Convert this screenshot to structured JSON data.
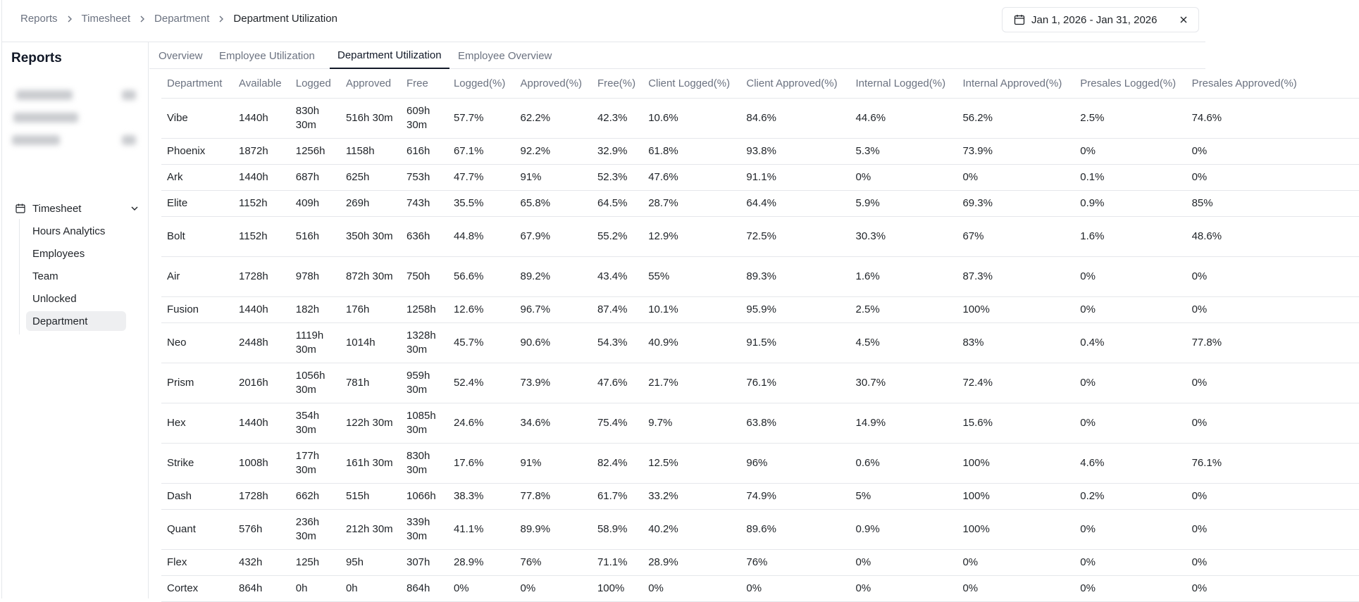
{
  "breadcrumb": {
    "items": [
      "Reports",
      "Timesheet",
      "Department"
    ],
    "current": "Department Utilization"
  },
  "date_range": {
    "label": "Jan 1, 2026 - Jan 31, 2026"
  },
  "sidebar": {
    "title": "Reports",
    "group_label": "Timesheet",
    "items": [
      "Hours Analytics",
      "Employees",
      "Team",
      "Unlocked",
      "Department"
    ]
  },
  "tabs": [
    "Overview",
    "Employee Utilization",
    "Department Utilization",
    "Employee Overview"
  ],
  "table": {
    "columns": [
      "Department",
      "Available",
      "Logged",
      "Approved",
      "Free",
      "Logged(%)",
      "Approved(%)",
      "Free(%)",
      "Client Logged(%)",
      "Client Approved(%)",
      "Internal Logged(%)",
      "Internal Approved(%)",
      "Presales Logged(%)",
      "Presales Approved(%)"
    ],
    "rows": [
      [
        "Vibe",
        "1440h",
        "830h 30m",
        "516h 30m",
        "609h 30m",
        "57.7%",
        "62.2%",
        "42.3%",
        "10.6%",
        "84.6%",
        "44.6%",
        "56.2%",
        "2.5%",
        "74.6%"
      ],
      [
        "Phoenix",
        "1872h",
        "1256h",
        "1158h",
        "616h",
        "67.1%",
        "92.2%",
        "32.9%",
        "61.8%",
        "93.8%",
        "5.3%",
        "73.9%",
        "0%",
        "0%"
      ],
      [
        "Ark",
        "1440h",
        "687h",
        "625h",
        "753h",
        "47.7%",
        "91%",
        "52.3%",
        "47.6%",
        "91.1%",
        "0%",
        "0%",
        "0.1%",
        "0%"
      ],
      [
        "Elite",
        "1152h",
        "409h",
        "269h",
        "743h",
        "35.5%",
        "65.8%",
        "64.5%",
        "28.7%",
        "64.4%",
        "5.9%",
        "69.3%",
        "0.9%",
        "85%"
      ],
      [
        "Bolt",
        "1152h",
        "516h",
        "350h 30m",
        "636h",
        "44.8%",
        "67.9%",
        "55.2%",
        "12.9%",
        "72.5%",
        "30.3%",
        "67%",
        "1.6%",
        "48.6%"
      ],
      [
        "Air",
        "1728h",
        "978h",
        "872h 30m",
        "750h",
        "56.6%",
        "89.2%",
        "43.4%",
        "55%",
        "89.3%",
        "1.6%",
        "87.3%",
        "0%",
        "0%"
      ],
      [
        "Fusion",
        "1440h",
        "182h",
        "176h",
        "1258h",
        "12.6%",
        "96.7%",
        "87.4%",
        "10.1%",
        "95.9%",
        "2.5%",
        "100%",
        "0%",
        "0%"
      ],
      [
        "Neo",
        "2448h",
        "1119h 30m",
        "1014h",
        "1328h 30m",
        "45.7%",
        "90.6%",
        "54.3%",
        "40.9%",
        "91.5%",
        "4.5%",
        "83%",
        "0.4%",
        "77.8%"
      ],
      [
        "Prism",
        "2016h",
        "1056h 30m",
        "781h",
        "959h 30m",
        "52.4%",
        "73.9%",
        "47.6%",
        "21.7%",
        "76.1%",
        "30.7%",
        "72.4%",
        "0%",
        "0%"
      ],
      [
        "Hex",
        "1440h",
        "354h 30m",
        "122h 30m",
        "1085h 30m",
        "24.6%",
        "34.6%",
        "75.4%",
        "9.7%",
        "63.8%",
        "14.9%",
        "15.6%",
        "0%",
        "0%"
      ],
      [
        "Strike",
        "1008h",
        "177h 30m",
        "161h 30m",
        "830h 30m",
        "17.6%",
        "91%",
        "82.4%",
        "12.5%",
        "96%",
        "0.6%",
        "100%",
        "4.6%",
        "76.1%"
      ],
      [
        "Dash",
        "1728h",
        "662h",
        "515h",
        "1066h",
        "38.3%",
        "77.8%",
        "61.7%",
        "33.2%",
        "74.9%",
        "5%",
        "100%",
        "0.2%",
        "0%"
      ],
      [
        "Quant",
        "576h",
        "236h 30m",
        "212h 30m",
        "339h 30m",
        "41.1%",
        "89.9%",
        "58.9%",
        "40.2%",
        "89.6%",
        "0.9%",
        "100%",
        "0%",
        "0%"
      ],
      [
        "Flex",
        "432h",
        "125h",
        "95h",
        "307h",
        "28.9%",
        "76%",
        "71.1%",
        "28.9%",
        "76%",
        "0%",
        "0%",
        "0%",
        "0%"
      ],
      [
        "Cortex",
        "864h",
        "0h",
        "0h",
        "864h",
        "0%",
        "0%",
        "100%",
        "0%",
        "0%",
        "0%",
        "0%",
        "0%",
        "0%"
      ]
    ]
  }
}
